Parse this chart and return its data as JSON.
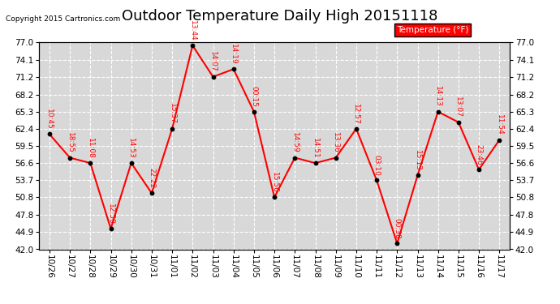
{
  "title": "Outdoor Temperature Daily High 20151118",
  "copyright": "Copyright 2015 Cartronics.com",
  "legend_label": "Temperature (°F)",
  "x_labels": [
    "10/26",
    "10/27",
    "10/28",
    "10/29",
    "10/30",
    "10/31",
    "11/01",
    "11/02",
    "11/03",
    "11/04",
    "11/05",
    "11/06",
    "11/07",
    "11/08",
    "11/09",
    "11/10",
    "11/11",
    "11/12",
    "11/13",
    "11/14",
    "11/15",
    "11/16",
    "11/17"
  ],
  "y_values": [
    61.5,
    57.5,
    56.6,
    45.5,
    56.6,
    51.5,
    62.4,
    76.5,
    71.2,
    72.5,
    65.3,
    50.8,
    57.5,
    56.6,
    57.5,
    62.4,
    53.7,
    43.0,
    54.5,
    65.3,
    63.5,
    55.5,
    60.5
  ],
  "annotations": [
    "10:45",
    "18:55",
    "11:08",
    "12:50",
    "14:53",
    "22:22",
    "15:37",
    "13:44",
    "14:07",
    "14:19",
    "00:15",
    "15:56",
    "14:59",
    "14:51",
    "13:36",
    "12:57",
    "03:10",
    "00:38",
    "15:13",
    "14:13",
    "13:07",
    "23:46",
    "11:54"
  ],
  "ylim": [
    42.0,
    77.0
  ],
  "yticks": [
    42.0,
    44.9,
    47.8,
    50.8,
    53.7,
    56.6,
    59.5,
    62.4,
    65.3,
    68.2,
    71.2,
    74.1,
    77.0
  ],
  "line_color": "red",
  "marker_color": "black",
  "bg_color": "#d8d8d8",
  "title_fontsize": 13,
  "annot_color": "red",
  "legend_bg": "red",
  "legend_text_color": "white",
  "fig_width": 6.9,
  "fig_height": 3.75,
  "dpi": 100
}
